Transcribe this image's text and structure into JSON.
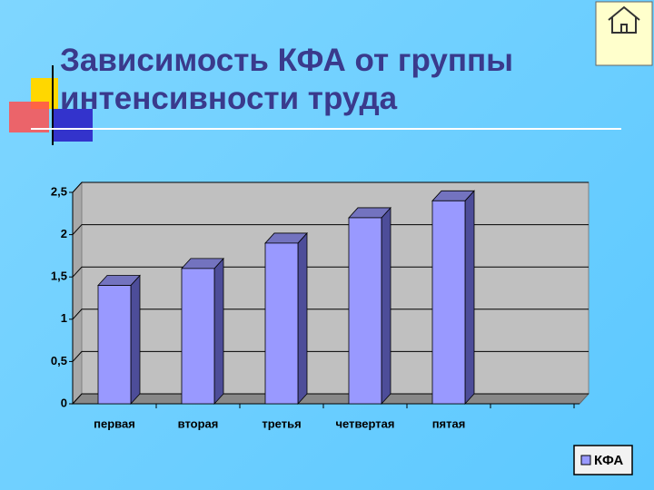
{
  "chart_data": {
    "type": "bar",
    "title": "Зависимость КФА от группы интенсивности труда",
    "categories": [
      "первая",
      "вторая",
      "третья",
      "четвертая",
      "пятая",
      null
    ],
    "series": [
      {
        "name": "КФА",
        "color": "#9999ff",
        "values": [
          1.4,
          1.6,
          1.9,
          2.2,
          2.4,
          null
        ]
      }
    ],
    "ylim": [
      0,
      2.5
    ],
    "yticks": [
      0,
      {
        "value": 0.5,
        "label": "0,5"
      },
      1,
      {
        "value": 1.5,
        "label": "1,5"
      },
      2,
      {
        "value": 2.5,
        "label": "2,5"
      }
    ],
    "grid": true,
    "legend": "bottom-right"
  }
}
